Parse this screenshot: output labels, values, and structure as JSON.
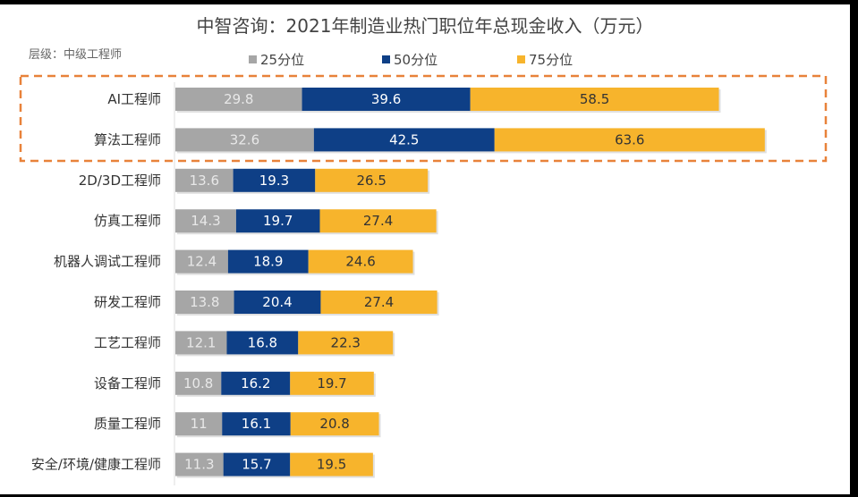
{
  "chart_data": {
    "type": "bar",
    "orientation": "horizontal",
    "stacked": true,
    "title": "中智咨询：2021年制造业热门职位年总现金收入（万元）",
    "subtitle": "层级：中级工程师",
    "legend_position": "top",
    "grid": false,
    "categories": [
      "AI工程师",
      "算法工程师",
      "2D/3D工程师",
      "仿真工程师",
      "机器人调试工程师",
      "研发工程师",
      "工艺工程师",
      "设备工程师",
      "质量工程师",
      "安全/环境/健康工程师"
    ],
    "series": [
      {
        "name": "25分位",
        "color": "#a6a6a6",
        "label_color": "#e8e8e8",
        "values": [
          29.8,
          32.6,
          13.6,
          14.3,
          12.4,
          13.8,
          12.1,
          10.8,
          11,
          11.3
        ]
      },
      {
        "name": "50分位",
        "color": "#0e3f86",
        "label_color": "#ffffff",
        "values": [
          39.6,
          42.5,
          19.3,
          19.7,
          18.9,
          20.4,
          16.8,
          16.2,
          16.1,
          15.7
        ]
      },
      {
        "name": "75分位",
        "color": "#f7b42c",
        "label_color": "#333333",
        "values": [
          58.5,
          63.6,
          26.5,
          27.4,
          24.6,
          27.4,
          22.3,
          19.7,
          20.8,
          19.5
        ]
      }
    ],
    "highlighted_categories": [
      "AI工程师",
      "算法工程师"
    ],
    "highlight_color": "#e8823a"
  }
}
